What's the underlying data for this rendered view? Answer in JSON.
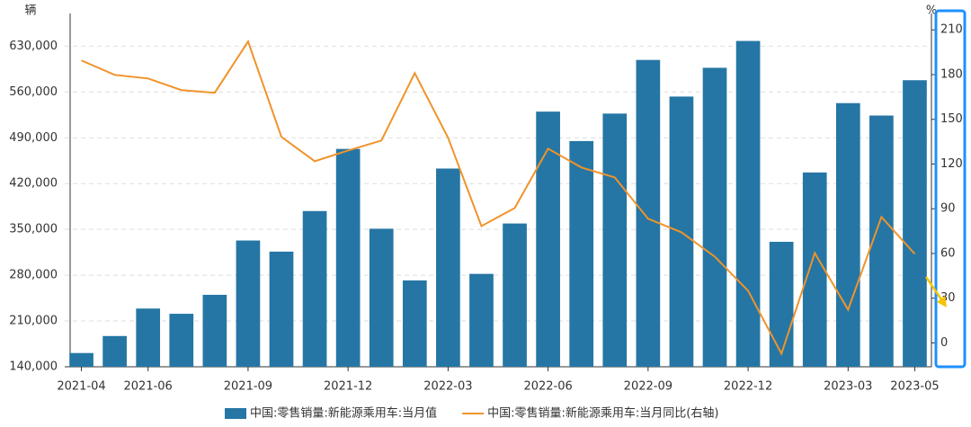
{
  "chart_data": {
    "type": "bar-line",
    "y_label": "辆",
    "y2_label": "%",
    "categories": [
      "2021-04",
      null,
      "2021-06",
      null,
      null,
      "2021-09",
      null,
      null,
      "2021-12",
      null,
      null,
      "2022-03",
      null,
      null,
      "2022-06",
      null,
      null,
      "2022-09",
      null,
      null,
      "2022-12",
      null,
      null,
      "2023-03",
      null,
      "2023-05"
    ],
    "series": [
      {
        "name": "中国:零售销量:新能源乘用车:当月值",
        "type": "bar",
        "color": "#2576a4",
        "values": [
          161000,
          187000,
          229000,
          221000,
          250000,
          333000,
          316000,
          378000,
          473000,
          351000,
          272000,
          443000,
          282000,
          359000,
          530000,
          485000,
          527000,
          609000,
          553000,
          597000,
          638000,
          331000,
          437000,
          543000,
          524000,
          578000
        ]
      },
      {
        "name": "中国:零售销量:新能源乘用车:当月同比(右轴)",
        "type": "line",
        "axis": "y2",
        "color": "#f0932b",
        "values": [
          189.5,
          179.8,
          177.4,
          169.6,
          167.8,
          202.2,
          138.2,
          121.9,
          129.1,
          135.8,
          181,
          137.6,
          78.4,
          90.5,
          130.3,
          117.7,
          111,
          83.3,
          74.2,
          57.9,
          35,
          -7.2,
          60.3,
          22.3,
          84.5,
          59.7
        ]
      }
    ],
    "ylim": [
      140000,
      680000
    ],
    "yticks": [
      {
        "value": 140000,
        "label": "140,000"
      },
      {
        "value": 210000,
        "label": "210,000"
      },
      {
        "value": 280000,
        "label": "280,000"
      },
      {
        "value": 350000,
        "label": "350,000"
      },
      {
        "value": 420000,
        "label": "420,000"
      },
      {
        "value": 490000,
        "label": "490,000"
      },
      {
        "value": 560000,
        "label": "560,000"
      },
      {
        "value": 630000,
        "label": "630,000"
      }
    ],
    "y2lim": [
      -16,
      221
    ],
    "y2ticks": [
      0,
      30,
      60,
      90,
      120,
      150,
      180,
      210
    ],
    "grid": true,
    "legend": "bottom"
  }
}
